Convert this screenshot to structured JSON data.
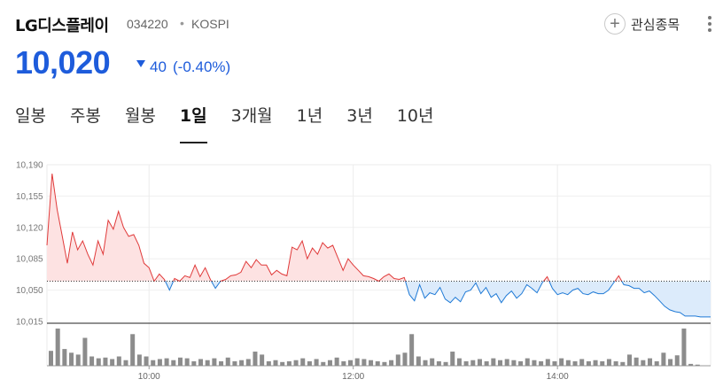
{
  "header": {
    "stock_name": "LG디스플레이",
    "stock_code": "034220",
    "market": "KOSPI",
    "favorite_label": "관심종목"
  },
  "quote": {
    "price": "10,020",
    "direction": "down",
    "change": "40",
    "change_pct": "(-0.40%)",
    "color": "#1e5cdb"
  },
  "tabs": [
    {
      "label": "일봉",
      "active": false
    },
    {
      "label": "주봉",
      "active": false
    },
    {
      "label": "월봉",
      "active": false
    },
    {
      "label": "1일",
      "active": true
    },
    {
      "label": "3개월",
      "active": false
    },
    {
      "label": "1년",
      "active": false
    },
    {
      "label": "3년",
      "active": false
    },
    {
      "label": "10년",
      "active": false
    }
  ],
  "icons": {
    "favorite": "plus-circle-icon",
    "more": "vertical-dots-icon",
    "change_direction": "triangle-down-icon"
  },
  "chart_data": {
    "type": "line",
    "time_start": "09:00",
    "time_end": "15:30",
    "xticks": [
      "10:00",
      "12:00",
      "14:00"
    ],
    "ylim": [
      10015,
      10190
    ],
    "yticks": [
      "10,190",
      "10,155",
      "10,120",
      "10,085",
      "10,050",
      "10,015"
    ],
    "reference_price": 10060,
    "up_color": "#e03a3a",
    "down_color": "#1f7ad6",
    "grid": true,
    "price_series": [
      [
        "09:00",
        10100
      ],
      [
        "09:03",
        10180
      ],
      [
        "09:06",
        10140
      ],
      [
        "09:09",
        10110
      ],
      [
        "09:12",
        10080
      ],
      [
        "09:15",
        10115
      ],
      [
        "09:18",
        10095
      ],
      [
        "09:21",
        10105
      ],
      [
        "09:24",
        10090
      ],
      [
        "09:27",
        10078
      ],
      [
        "09:30",
        10105
      ],
      [
        "09:33",
        10090
      ],
      [
        "09:36",
        10128
      ],
      [
        "09:39",
        10118
      ],
      [
        "09:42",
        10138
      ],
      [
        "09:45",
        10120
      ],
      [
        "09:48",
        10110
      ],
      [
        "09:51",
        10112
      ],
      [
        "09:54",
        10100
      ],
      [
        "09:57",
        10080
      ],
      [
        "10:00",
        10075
      ],
      [
        "10:03",
        10060
      ],
      [
        "10:06",
        10068
      ],
      [
        "10:09",
        10062
      ],
      [
        "10:12",
        10050
      ],
      [
        "10:15",
        10063
      ],
      [
        "10:18",
        10060
      ],
      [
        "10:21",
        10066
      ],
      [
        "10:24",
        10064
      ],
      [
        "10:27",
        10078
      ],
      [
        "10:30",
        10065
      ],
      [
        "10:33",
        10075
      ],
      [
        "10:36",
        10062
      ],
      [
        "10:39",
        10052
      ],
      [
        "10:42",
        10060
      ],
      [
        "10:45",
        10062
      ],
      [
        "10:48",
        10066
      ],
      [
        "10:51",
        10067
      ],
      [
        "10:54",
        10070
      ],
      [
        "10:57",
        10082
      ],
      [
        "11:00",
        10075
      ],
      [
        "11:03",
        10084
      ],
      [
        "11:06",
        10078
      ],
      [
        "11:09",
        10078
      ],
      [
        "11:12",
        10067
      ],
      [
        "11:15",
        10072
      ],
      [
        "11:18",
        10068
      ],
      [
        "11:21",
        10066
      ],
      [
        "11:24",
        10098
      ],
      [
        "11:27",
        10095
      ],
      [
        "11:30",
        10105
      ],
      [
        "11:33",
        10085
      ],
      [
        "11:36",
        10097
      ],
      [
        "11:39",
        10090
      ],
      [
        "11:42",
        10103
      ],
      [
        "11:45",
        10097
      ],
      [
        "11:48",
        10100
      ],
      [
        "11:51",
        10086
      ],
      [
        "11:54",
        10072
      ],
      [
        "11:57",
        10085
      ],
      [
        "12:00",
        10078
      ],
      [
        "12:03",
        10072
      ],
      [
        "12:06",
        10066
      ],
      [
        "12:09",
        10065
      ],
      [
        "12:12",
        10063
      ],
      [
        "12:15",
        10060
      ],
      [
        "12:18",
        10065
      ],
      [
        "12:21",
        10068
      ],
      [
        "12:24",
        10063
      ],
      [
        "12:27",
        10062
      ],
      [
        "12:30",
        10064
      ],
      [
        "12:33",
        10045
      ],
      [
        "12:36",
        10038
      ],
      [
        "12:39",
        10056
      ],
      [
        "12:42",
        10041
      ],
      [
        "12:45",
        10047
      ],
      [
        "12:48",
        10045
      ],
      [
        "12:51",
        10053
      ],
      [
        "12:54",
        10040
      ],
      [
        "12:57",
        10036
      ],
      [
        "13:00",
        10042
      ],
      [
        "13:03",
        10037
      ],
      [
        "13:06",
        10048
      ],
      [
        "13:09",
        10050
      ],
      [
        "13:12",
        10058
      ],
      [
        "13:15",
        10046
      ],
      [
        "13:18",
        10053
      ],
      [
        "13:21",
        10042
      ],
      [
        "13:24",
        10046
      ],
      [
        "13:27",
        10036
      ],
      [
        "13:30",
        10044
      ],
      [
        "13:33",
        10049
      ],
      [
        "13:36",
        10041
      ],
      [
        "13:39",
        10046
      ],
      [
        "13:42",
        10056
      ],
      [
        "13:45",
        10052
      ],
      [
        "13:48",
        10047
      ],
      [
        "13:51",
        10058
      ],
      [
        "13:54",
        10065
      ],
      [
        "13:57",
        10052
      ],
      [
        "14:00",
        10045
      ],
      [
        "14:03",
        10047
      ],
      [
        "14:06",
        10045
      ],
      [
        "14:09",
        10050
      ],
      [
        "14:12",
        10052
      ],
      [
        "14:15",
        10046
      ],
      [
        "14:18",
        10045
      ],
      [
        "14:21",
        10048
      ],
      [
        "14:24",
        10046
      ],
      [
        "14:27",
        10046
      ],
      [
        "14:30",
        10050
      ],
      [
        "14:33",
        10058
      ],
      [
        "14:36",
        10066
      ],
      [
        "14:39",
        10056
      ],
      [
        "14:42",
        10055
      ],
      [
        "14:45",
        10052
      ],
      [
        "14:48",
        10052
      ],
      [
        "14:51",
        10047
      ],
      [
        "14:54",
        10049
      ],
      [
        "14:57",
        10044
      ],
      [
        "15:00",
        10038
      ],
      [
        "15:03",
        10032
      ],
      [
        "15:06",
        10028
      ],
      [
        "15:09",
        10026
      ],
      [
        "15:12",
        10025
      ],
      [
        "15:15",
        10021
      ],
      [
        "15:18",
        10021
      ],
      [
        "15:21",
        10021
      ],
      [
        "15:24",
        10020
      ],
      [
        "15:27",
        10020
      ],
      [
        "15:30",
        10020
      ]
    ],
    "volume_scale_max": 100,
    "volume_series": [
      [
        "09:00",
        40
      ],
      [
        "09:04",
        100
      ],
      [
        "09:08",
        45
      ],
      [
        "09:12",
        35
      ],
      [
        "09:16",
        30
      ],
      [
        "09:20",
        75
      ],
      [
        "09:24",
        25
      ],
      [
        "09:28",
        20
      ],
      [
        "09:32",
        22
      ],
      [
        "09:36",
        18
      ],
      [
        "09:40",
        25
      ],
      [
        "09:44",
        15
      ],
      [
        "09:48",
        85
      ],
      [
        "09:52",
        30
      ],
      [
        "09:56",
        25
      ],
      [
        "10:00",
        15
      ],
      [
        "10:04",
        18
      ],
      [
        "10:08",
        20
      ],
      [
        "10:12",
        15
      ],
      [
        "10:16",
        22
      ],
      [
        "10:20",
        20
      ],
      [
        "10:24",
        12
      ],
      [
        "10:28",
        18
      ],
      [
        "10:32",
        15
      ],
      [
        "10:36",
        20
      ],
      [
        "10:40",
        12
      ],
      [
        "10:44",
        22
      ],
      [
        "10:48",
        12
      ],
      [
        "10:52",
        15
      ],
      [
        "10:56",
        18
      ],
      [
        "11:00",
        38
      ],
      [
        "11:04",
        30
      ],
      [
        "11:08",
        12
      ],
      [
        "11:12",
        15
      ],
      [
        "11:16",
        10
      ],
      [
        "11:20",
        12
      ],
      [
        "11:24",
        15
      ],
      [
        "11:28",
        20
      ],
      [
        "11:32",
        12
      ],
      [
        "11:36",
        18
      ],
      [
        "11:40",
        10
      ],
      [
        "11:44",
        15
      ],
      [
        "11:48",
        22
      ],
      [
        "11:52",
        12
      ],
      [
        "11:56",
        15
      ],
      [
        "12:00",
        20
      ],
      [
        "12:04",
        18
      ],
      [
        "12:08",
        15
      ],
      [
        "12:12",
        12
      ],
      [
        "12:16",
        10
      ],
      [
        "12:20",
        15
      ],
      [
        "12:24",
        30
      ],
      [
        "12:28",
        35
      ],
      [
        "12:32",
        85
      ],
      [
        "12:36",
        25
      ],
      [
        "12:40",
        15
      ],
      [
        "12:44",
        20
      ],
      [
        "12:48",
        12
      ],
      [
        "12:52",
        10
      ],
      [
        "12:56",
        38
      ],
      [
        "13:00",
        20
      ],
      [
        "13:04",
        12
      ],
      [
        "13:08",
        15
      ],
      [
        "13:12",
        18
      ],
      [
        "13:16",
        12
      ],
      [
        "13:20",
        20
      ],
      [
        "13:24",
        15
      ],
      [
        "13:28",
        18
      ],
      [
        "13:32",
        15
      ],
      [
        "13:36",
        12
      ],
      [
        "13:40",
        20
      ],
      [
        "13:44",
        15
      ],
      [
        "13:48",
        12
      ],
      [
        "13:52",
        18
      ],
      [
        "13:56",
        12
      ],
      [
        "14:00",
        20
      ],
      [
        "14:04",
        15
      ],
      [
        "14:08",
        12
      ],
      [
        "14:12",
        18
      ],
      [
        "14:16",
        12
      ],
      [
        "14:20",
        15
      ],
      [
        "14:24",
        12
      ],
      [
        "14:28",
        18
      ],
      [
        "14:32",
        12
      ],
      [
        "14:36",
        10
      ],
      [
        "14:40",
        30
      ],
      [
        "14:44",
        22
      ],
      [
        "14:48",
        15
      ],
      [
        "14:52",
        20
      ],
      [
        "14:56",
        12
      ],
      [
        "15:00",
        35
      ],
      [
        "15:04",
        18
      ],
      [
        "15:08",
        28
      ],
      [
        "15:12",
        100
      ],
      [
        "15:16",
        5
      ],
      [
        "15:20",
        3
      ]
    ]
  }
}
